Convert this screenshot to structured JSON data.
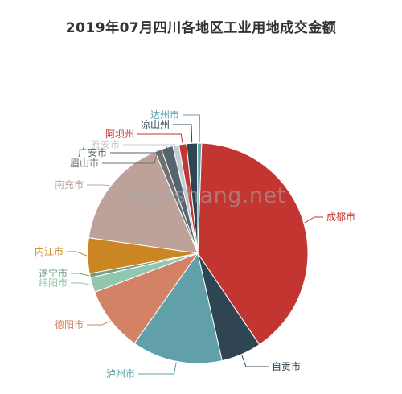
{
  "chart_data": {
    "type": "pie",
    "title": "2019年07月四川各地区工业用地成交金额",
    "categories": [
      "成都市",
      "自贡市",
      "泸州市",
      "德阳市",
      "绵阳市",
      "遂宁市",
      "内江市",
      "南充市",
      "眉山市",
      "广安市",
      "雅安市",
      "阿坝州",
      "凉山州",
      "达州市"
    ],
    "values": [
      40.0,
      5.9,
      13.3,
      9.5,
      2.2,
      0.6,
      5.2,
      16.4,
      1.0,
      1.7,
      0.9,
      1.1,
      1.6,
      0.6
    ],
    "colors": [
      "#c23531",
      "#2f4554",
      "#61a0a8",
      "#d48265",
      "#91c7ae",
      "#749f83",
      "#ca8622",
      "#bda29a",
      "#6e7074",
      "#546570",
      "#c4ccd3",
      "#c23531",
      "#2f4554",
      "#61a0a8"
    ],
    "legend": "none"
  },
  "watermark": "zhaoshang.net"
}
